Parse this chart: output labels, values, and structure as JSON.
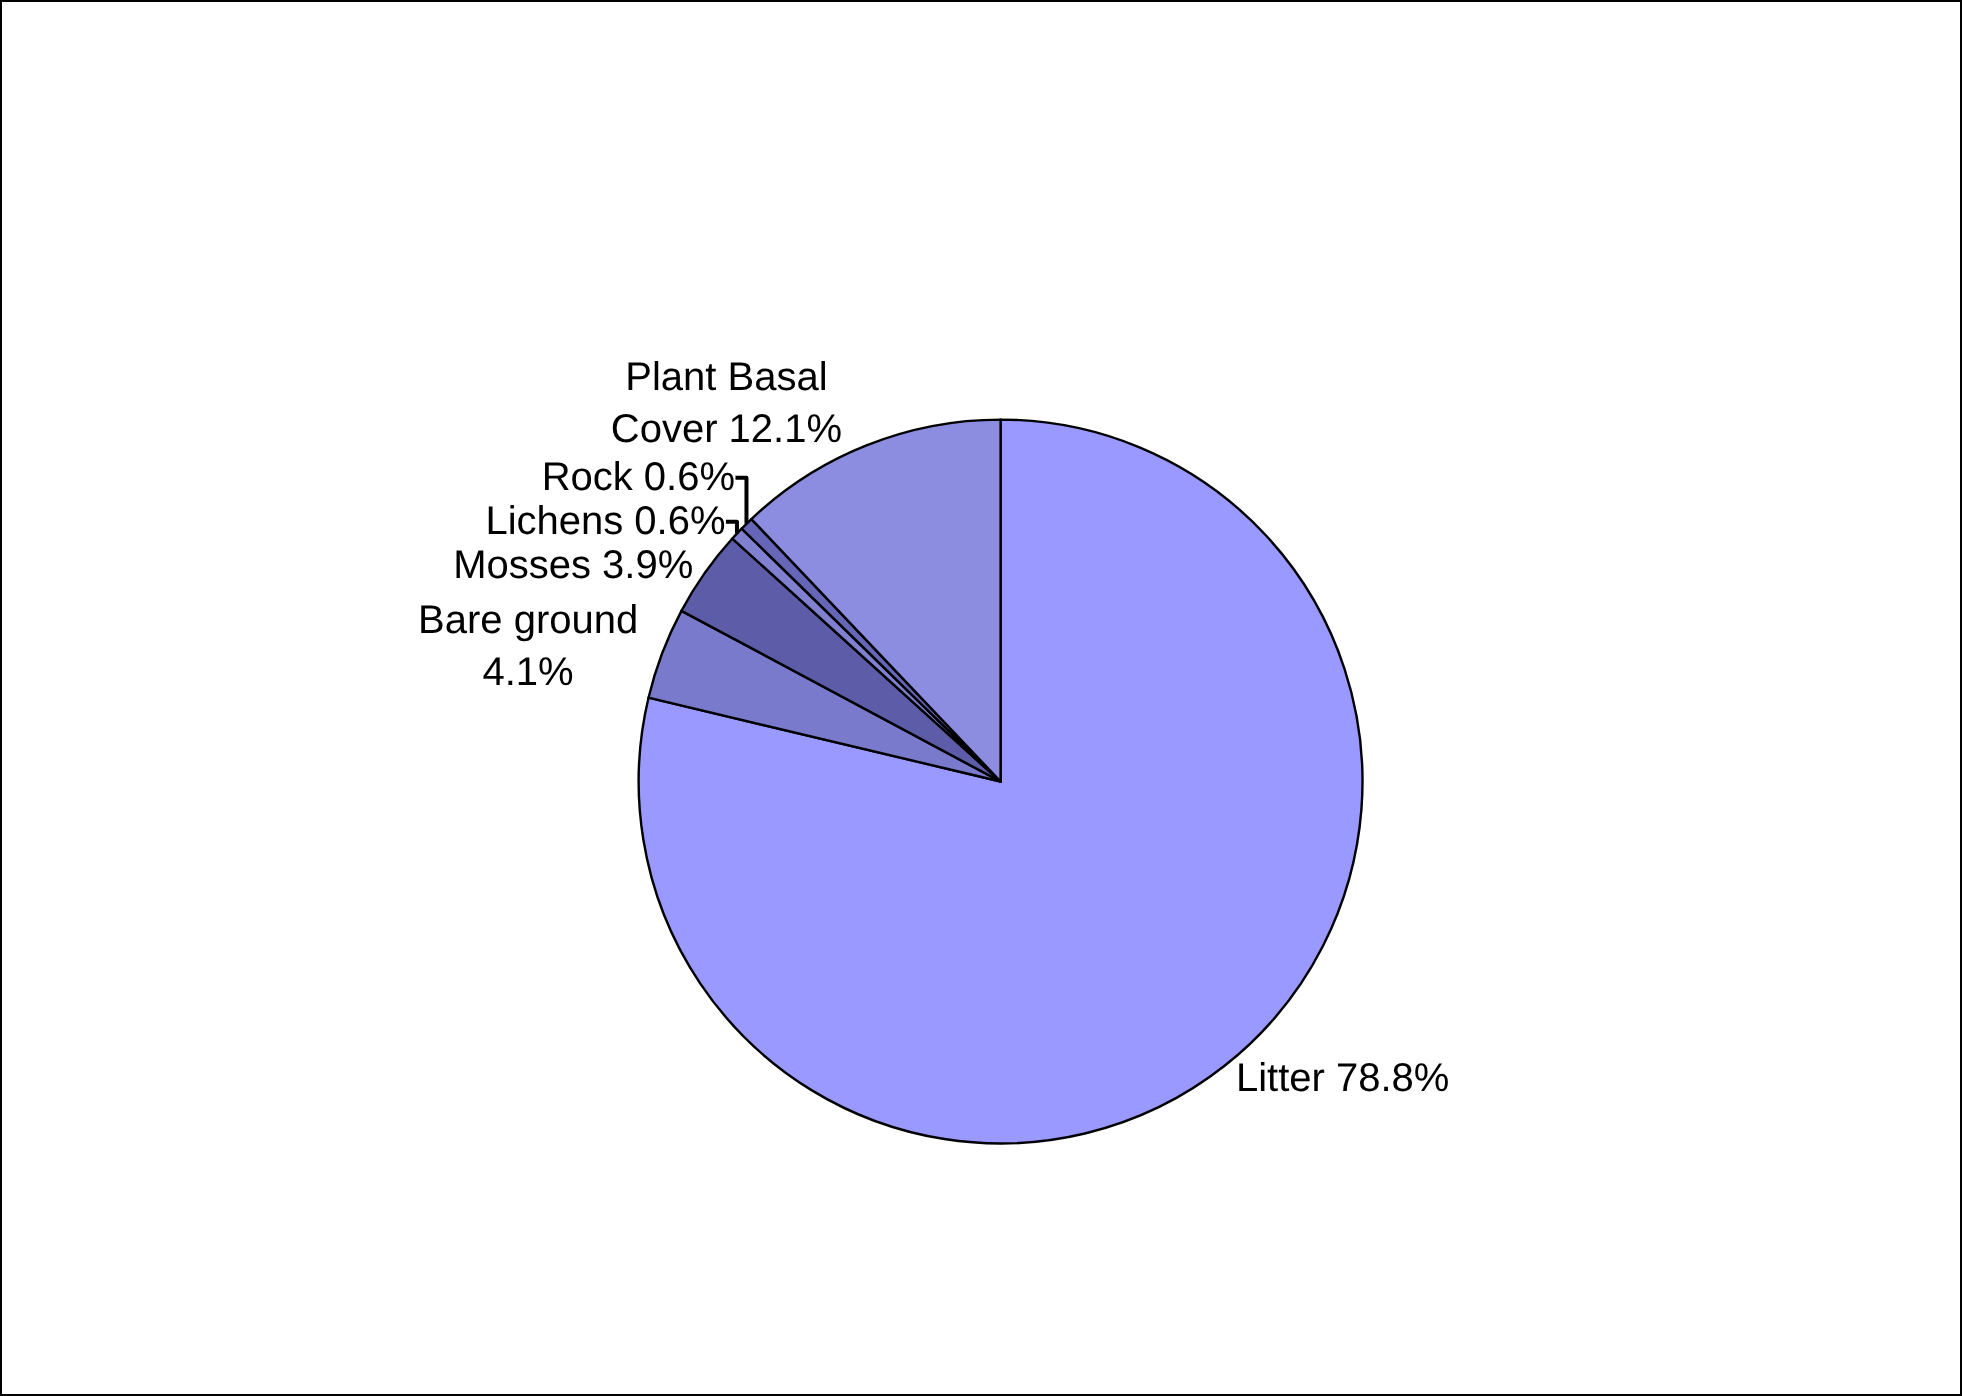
{
  "chart_data": {
    "type": "pie",
    "categories": [
      "Litter",
      "Bare ground",
      "Mosses",
      "Lichens",
      "Rock",
      "Plant Basal Cover"
    ],
    "values": [
      78.8,
      4.1,
      3.9,
      0.6,
      0.6,
      12.1
    ],
    "colors": [
      "#9999ff",
      "#7a7acc",
      "#5c5ca8",
      "#8080d0",
      "#6666b8",
      "#8c8ce0"
    ],
    "value_labels": [
      "78.8%",
      "4.1%",
      "3.9%",
      "0.6%",
      "0.6%",
      "12.1%"
    ]
  }
}
